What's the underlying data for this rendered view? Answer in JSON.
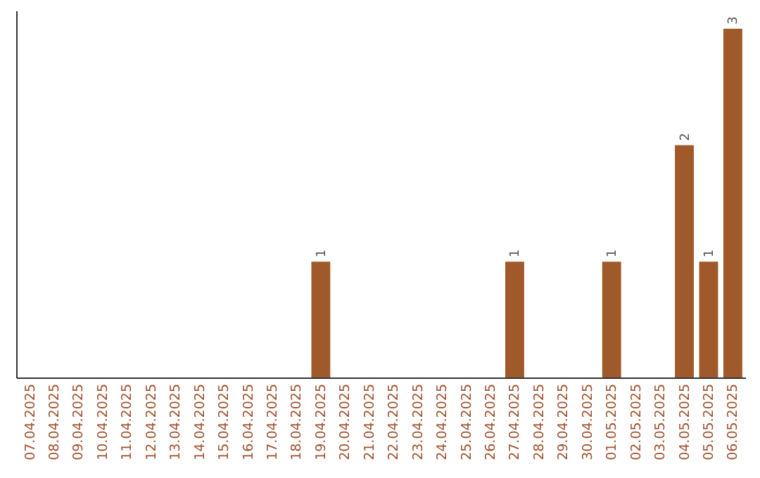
{
  "chart_data": {
    "type": "bar",
    "categories": [
      "07.04.2025",
      "08.04.2025",
      "09.04.2025",
      "10.04.2025",
      "11.04.2025",
      "12.04.2025",
      "13.04.2025",
      "14.04.2025",
      "15.04.2025",
      "16.04.2025",
      "17.04.2025",
      "18.04.2025",
      "19.04.2025",
      "20.04.2025",
      "21.04.2025",
      "22.04.2025",
      "23.04.2025",
      "24.04.2025",
      "25.04.2025",
      "26.04.2025",
      "27.04.2025",
      "28.04.2025",
      "29.04.2025",
      "30.04.2025",
      "01.05.2025",
      "02.05.2025",
      "03.05.2025",
      "04.05.2025",
      "05.05.2025",
      "06.05.2025"
    ],
    "values": [
      null,
      null,
      null,
      null,
      null,
      null,
      null,
      null,
      null,
      null,
      null,
      null,
      1,
      null,
      null,
      null,
      null,
      null,
      null,
      null,
      1,
      null,
      null,
      null,
      1,
      null,
      null,
      2,
      1,
      3
    ],
    "data_labels": true,
    "color": "#a0592a",
    "tick_labels": "x"
  }
}
